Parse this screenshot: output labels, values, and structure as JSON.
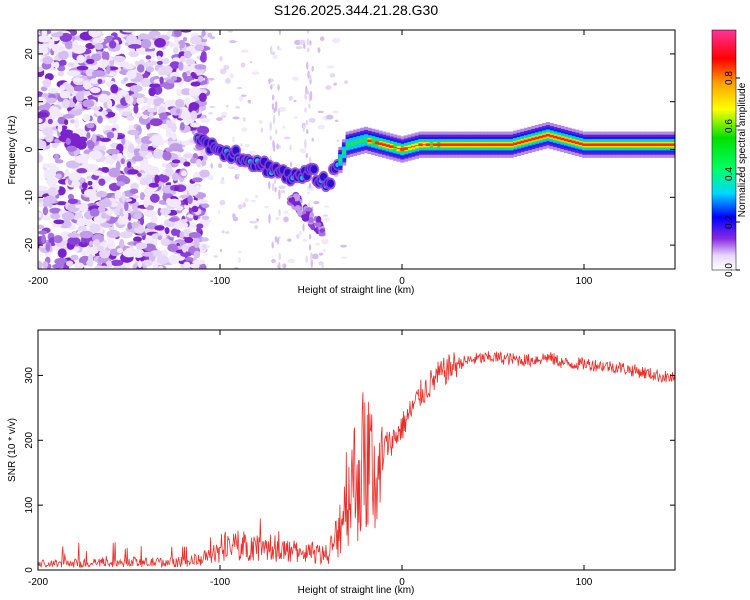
{
  "chart_data": [
    {
      "type": "heatmap",
      "title": "S126.2025.344.21.28.G30",
      "xlabel": "Height of straight line (km)",
      "ylabel": "Frequency (Hz)",
      "xlim": [
        -200,
        150
      ],
      "ylim": [
        -25,
        25
      ],
      "xticks": [
        -200,
        -100,
        0,
        100
      ],
      "xtick_labels": [
        "-200",
        "-100",
        "0",
        "100"
      ],
      "yticks": [
        -20,
        -10,
        0,
        10,
        20
      ],
      "ytick_labels": [
        "-20",
        "-10",
        "0",
        "10",
        "20"
      ],
      "colorbar": {
        "label": "Normalized spectral amplitude",
        "range": [
          0,
          1
        ],
        "ticks": [
          0.0,
          0.2,
          0.4,
          0.6,
          0.8
        ],
        "tick_labels": [
          "0.0",
          "0.2",
          "0.4",
          "0.6",
          "0.8"
        ]
      },
      "ridge_frequency_hz": {
        "x": [
          -112,
          -100,
          -90,
          -80,
          -70,
          -60,
          -50,
          -40,
          -30,
          -20,
          -10,
          0,
          10,
          20,
          40,
          60,
          80,
          90,
          100,
          120,
          150
        ],
        "y": [
          2,
          0,
          -1,
          -3,
          -4,
          -6,
          -5,
          -7,
          1,
          2,
          1,
          0,
          1,
          1,
          1,
          1,
          3,
          2,
          1,
          1,
          1
        ]
      }
    },
    {
      "type": "line",
      "xlabel": "Height of straight line (km)",
      "ylabel": "SNR (10 * v/v)",
      "xlim": [
        -200,
        150
      ],
      "ylim": [
        0,
        370
      ],
      "xticks": [
        -200,
        -100,
        0,
        100
      ],
      "xtick_labels": [
        "-200",
        "-100",
        "0",
        "100"
      ],
      "yticks": [
        0,
        100,
        200,
        300
      ],
      "ytick_labels": [
        "0",
        "100",
        "200",
        "300"
      ],
      "color": "#e8302a",
      "envelope": {
        "x": [
          -200,
          -150,
          -120,
          -110,
          -100,
          -90,
          -80,
          -70,
          -60,
          -50,
          -40,
          -35,
          -30,
          -25,
          -20,
          -15,
          -10,
          -5,
          0,
          10,
          20,
          30,
          40,
          50,
          60,
          70,
          80,
          90,
          100,
          120,
          140,
          150
        ],
        "y": [
          10,
          12,
          13,
          18,
          30,
          40,
          38,
          35,
          30,
          28,
          25,
          80,
          170,
          190,
          230,
          200,
          190,
          200,
          220,
          270,
          300,
          318,
          325,
          328,
          325,
          323,
          328,
          318,
          318,
          312,
          300,
          295
        ]
      }
    }
  ]
}
